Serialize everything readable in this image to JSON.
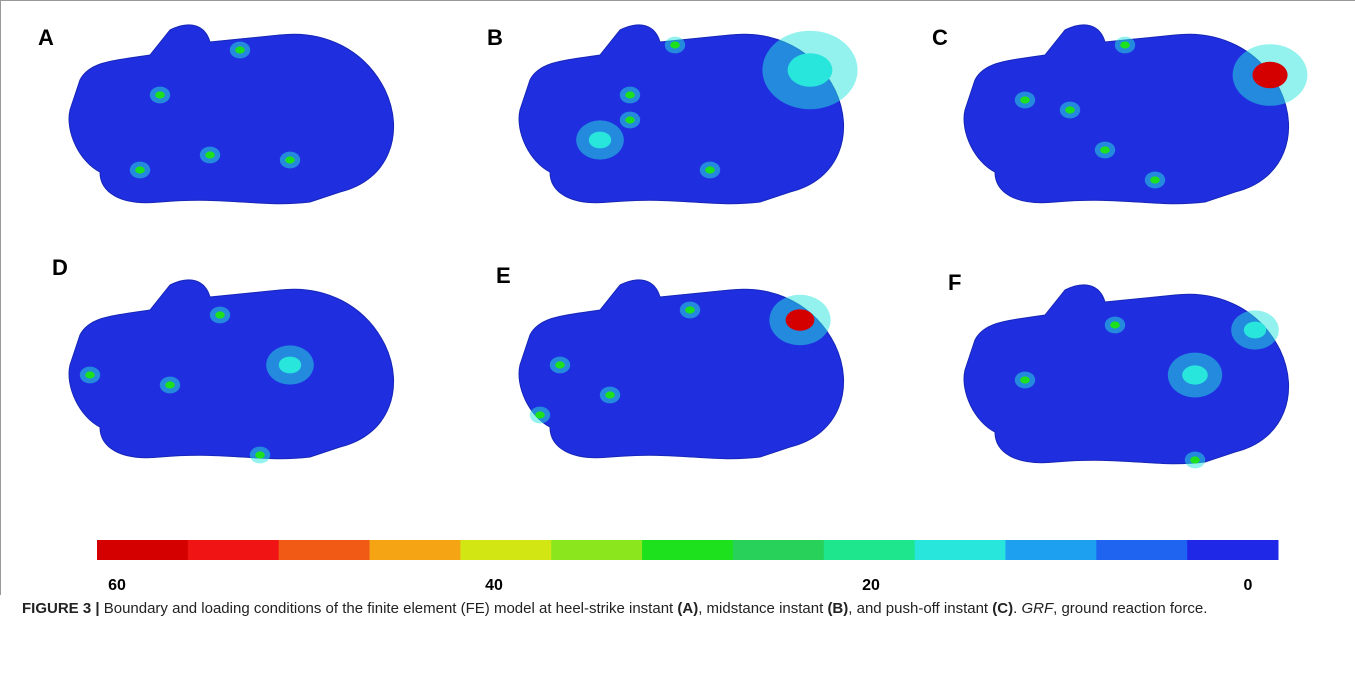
{
  "panels": [
    {
      "label": "A"
    },
    {
      "label": "B"
    },
    {
      "label": "C"
    },
    {
      "label": "D"
    },
    {
      "label": "E"
    },
    {
      "label": "F"
    }
  ],
  "colorbar": {
    "colors": [
      "#d40000",
      "#f01414",
      "#f05a14",
      "#f5a514",
      "#d2e614",
      "#8ce61e",
      "#1ee11e",
      "#28d25a",
      "#1ee68c",
      "#28e6dc",
      "#1ea0f0",
      "#1e64f0",
      "#1e28e6"
    ],
    "ticks": [
      60,
      40,
      20,
      0
    ]
  },
  "caption": [
    {
      "text": "FIGURE 3 | ",
      "style": "bold"
    },
    {
      "text": "Boundary and loading conditions of the finite element (FE) model at heel-strike instant ",
      "style": "normal"
    },
    {
      "text": "(A)",
      "style": "bold"
    },
    {
      "text": ", midstance instant ",
      "style": "normal"
    },
    {
      "text": "(B)",
      "style": "bold"
    },
    {
      "text": ", and push-off instant ",
      "style": "normal"
    },
    {
      "text": "(C)",
      "style": "bold"
    },
    {
      "text": ". ",
      "style": "normal"
    },
    {
      "text": "GRF",
      "style": "italic"
    },
    {
      "text": ", ground reaction force.",
      "style": "normal"
    }
  ]
}
